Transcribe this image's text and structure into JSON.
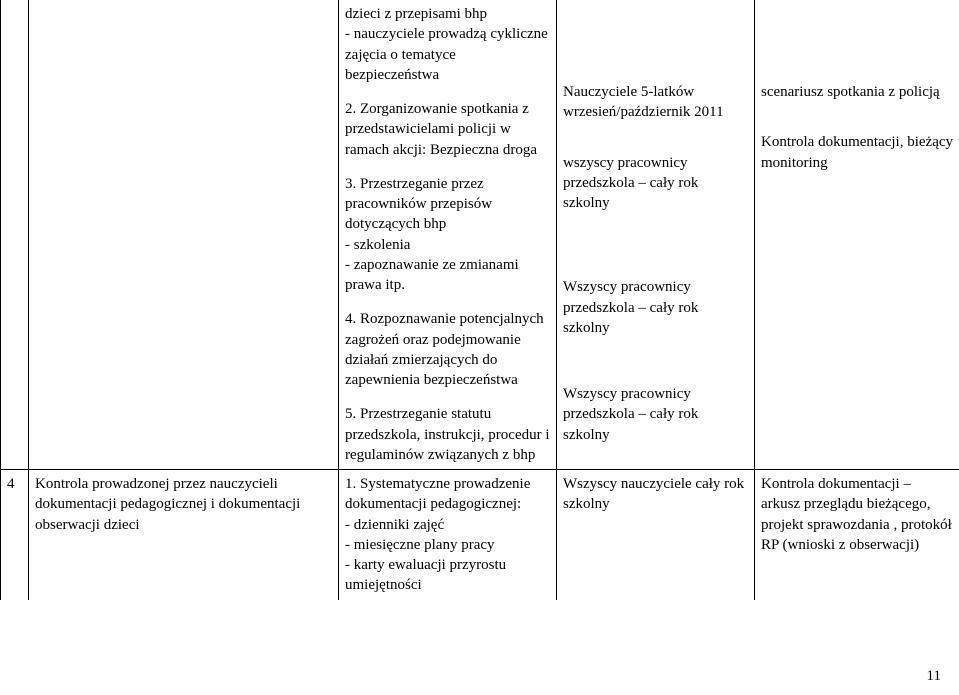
{
  "row1": {
    "actions": {
      "intro": "dzieci z przepisami bhp\n- nauczyciele prowadzą cykliczne zajęcia o tematyce bezpieczeństwa",
      "a2": "2. Zorganizowanie spotkania z przedstawicielami policji w ramach akcji: Bezpieczna droga",
      "a3": "3. Przestrzeganie przez pracowników przepisów dotyczących bhp\n- szkolenia\n- zapoznawanie ze zmianami prawa itp.",
      "a4": "4. Rozpoznawanie potencjalnych zagrożeń oraz podejmowanie działań zmierzających do zapewnienia bezpieczeństwa",
      "a5": "5. Przestrzeganie statutu przedszkola, instrukcji, procedur i regulaminów związanych z bhp"
    },
    "who": {
      "w2": "Nauczyciele 5-latków wrzesień/październik 2011",
      "w3": "wszyscy pracownicy przedszkola – cały rok szkolny",
      "w4": "Wszyscy pracownicy przedszkola – cały rok szkolny",
      "w5": "Wszyscy pracownicy przedszkola – cały rok szkolny"
    },
    "ctrl": {
      "c2": "scenariusz spotkania z policją",
      "c3": "Kontrola dokumentacji, bieżący monitoring"
    }
  },
  "row2": {
    "num": "4",
    "topic": "Kontrola prowadzonej przez nauczycieli dokumentacji pedagogicznej i dokumentacji obserwacji dzieci",
    "actions": "1. Systematyczne prowadzenie dokumentacji pedagogicznej:\n- dzienniki zajęć\n- miesięczne plany pracy\n- karty ewaluacji przyrostu umiejętności",
    "who": "Wszyscy nauczyciele cały rok szkolny",
    "ctrl": "Kontrola dokumentacji – arkusz przeglądu bieżącego, projekt sprawozdania , protokół RP (wnioski z obserwacji)"
  },
  "pageNumber": "11"
}
